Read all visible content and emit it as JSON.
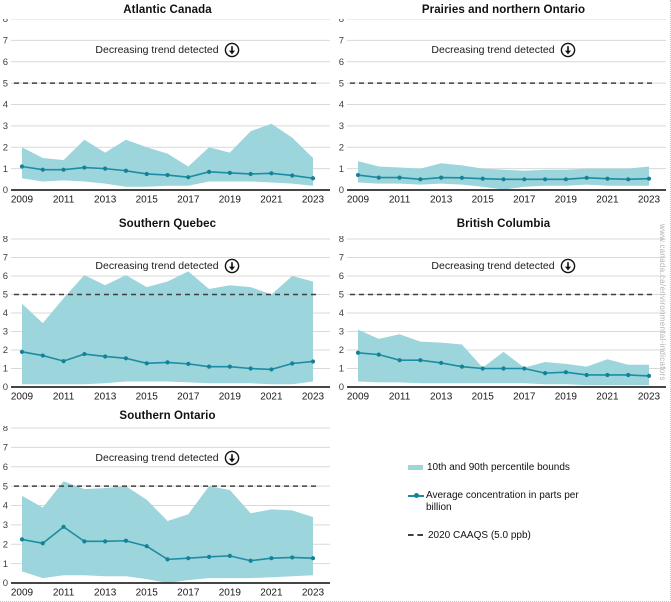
{
  "watermark": "www.canada.ca/environmental-indicators",
  "annotation": {
    "text": "Decreasing trend detected",
    "arrow_glyph": "down-arrow-in-circle"
  },
  "axis": {
    "ylim": [
      0,
      8
    ],
    "yticks": [
      0,
      1,
      2,
      3,
      4,
      5,
      6,
      7,
      8
    ],
    "xticks": [
      2009,
      2011,
      2013,
      2015,
      2017,
      2019,
      2021,
      2023
    ],
    "grid": true,
    "reference": {
      "label": "2020 CAAQS",
      "value": 5.0
    }
  },
  "colors": {
    "band": "#9CD5DC",
    "line": "#1E8CA1",
    "dot": "#14819A",
    "grid": "#D9D9D9",
    "axis": "#2B2B2B",
    "caaqs": "#3F3F3F"
  },
  "legend": {
    "items": [
      {
        "label": "10th and 90th percentile bounds"
      },
      {
        "label": "Average concentration in parts per billion"
      },
      {
        "label": "2020 CAAQS (5.0 ppb)"
      }
    ]
  },
  "chart_data": [
    {
      "type": "area",
      "title": "Atlantic Canada",
      "annotation": "Decreasing trend detected",
      "x": [
        2009,
        2010,
        2011,
        2012,
        2013,
        2014,
        2015,
        2016,
        2017,
        2018,
        2019,
        2020,
        2021,
        2022,
        2023
      ],
      "series": [
        {
          "name": "90th percentile",
          "values": [
            2.0,
            1.5,
            1.4,
            2.35,
            1.75,
            2.35,
            2.0,
            1.7,
            1.1,
            2.0,
            1.75,
            2.75,
            3.1,
            2.45,
            1.5
          ]
        },
        {
          "name": "Average concentration in parts per billion",
          "values": [
            1.1,
            0.95,
            0.95,
            1.05,
            1.0,
            0.9,
            0.75,
            0.7,
            0.6,
            0.85,
            0.8,
            0.75,
            0.78,
            0.68,
            0.55
          ]
        },
        {
          "name": "10th percentile",
          "values": [
            0.55,
            0.4,
            0.45,
            0.4,
            0.3,
            0.15,
            0.15,
            0.2,
            0.2,
            0.4,
            0.4,
            0.4,
            0.35,
            0.3,
            0.2
          ]
        }
      ]
    },
    {
      "type": "area",
      "title": "Prairies and northern Ontario",
      "annotation": "Decreasing trend detected",
      "x": [
        2009,
        2010,
        2011,
        2012,
        2013,
        2014,
        2015,
        2016,
        2017,
        2018,
        2019,
        2020,
        2021,
        2022,
        2023
      ],
      "series": [
        {
          "name": "90th percentile",
          "values": [
            1.35,
            1.1,
            1.05,
            1.0,
            1.25,
            1.15,
            1.0,
            0.95,
            0.9,
            0.95,
            0.95,
            1.0,
            1.0,
            1.0,
            1.1
          ]
        },
        {
          "name": "Average concentration in parts per billion",
          "values": [
            0.7,
            0.58,
            0.58,
            0.5,
            0.58,
            0.57,
            0.53,
            0.5,
            0.5,
            0.5,
            0.5,
            0.57,
            0.53,
            0.5,
            0.53
          ]
        },
        {
          "name": "10th percentile",
          "values": [
            0.35,
            0.3,
            0.3,
            0.25,
            0.3,
            0.25,
            0.15,
            0.02,
            0.15,
            0.2,
            0.2,
            0.25,
            0.2,
            0.2,
            0.2
          ]
        }
      ]
    },
    {
      "type": "area",
      "title": "Southern Quebec",
      "annotation": "Decreasing trend detected",
      "x": [
        2009,
        2010,
        2011,
        2012,
        2013,
        2014,
        2015,
        2016,
        2017,
        2018,
        2019,
        2020,
        2021,
        2022,
        2023
      ],
      "series": [
        {
          "name": "90th percentile",
          "values": [
            4.5,
            3.45,
            4.8,
            6.05,
            5.5,
            6.05,
            5.4,
            5.7,
            6.25,
            5.3,
            5.5,
            5.4,
            5.0,
            6.0,
            5.7
          ]
        },
        {
          "name": "Average concentration in parts per billion",
          "values": [
            1.9,
            1.7,
            1.4,
            1.78,
            1.65,
            1.55,
            1.28,
            1.33,
            1.25,
            1.1,
            1.1,
            1.0,
            0.95,
            1.27,
            1.38
          ]
        },
        {
          "name": "10th percentile",
          "values": [
            0.15,
            0.15,
            0.15,
            0.15,
            0.2,
            0.3,
            0.3,
            0.3,
            0.25,
            0.2,
            0.2,
            0.2,
            0.15,
            0.15,
            0.3
          ]
        }
      ]
    },
    {
      "type": "area",
      "title": "British Columbia",
      "annotation": "Decreasing trend detected",
      "x": [
        2009,
        2010,
        2011,
        2012,
        2013,
        2014,
        2015,
        2016,
        2017,
        2018,
        2019,
        2020,
        2021,
        2022,
        2023
      ],
      "series": [
        {
          "name": "90th percentile",
          "values": [
            3.1,
            2.6,
            2.85,
            2.45,
            2.4,
            2.3,
            1.05,
            1.9,
            1.05,
            1.35,
            1.25,
            1.1,
            1.5,
            1.2,
            1.2
          ]
        },
        {
          "name": "Average concentration in parts per billion",
          "values": [
            1.85,
            1.75,
            1.45,
            1.45,
            1.3,
            1.1,
            1.0,
            1.0,
            1.0,
            0.75,
            0.8,
            0.65,
            0.65,
            0.65,
            0.6
          ]
        },
        {
          "name": "10th percentile",
          "values": [
            0.3,
            0.25,
            0.25,
            0.2,
            0.2,
            0.2,
            0.2,
            0.2,
            0.2,
            0.15,
            0.15,
            0.1,
            0.1,
            0.1,
            0.1
          ]
        }
      ]
    },
    {
      "type": "area",
      "title": "Southern Ontario",
      "annotation": "Decreasing trend detected",
      "x": [
        2009,
        2010,
        2011,
        2012,
        2013,
        2014,
        2015,
        2016,
        2017,
        2018,
        2019,
        2020,
        2021,
        2022,
        2023
      ],
      "series": [
        {
          "name": "90th percentile",
          "values": [
            4.5,
            3.9,
            5.25,
            4.85,
            4.9,
            5.0,
            4.3,
            3.2,
            3.55,
            5.0,
            4.8,
            3.6,
            3.8,
            3.75,
            3.4
          ]
        },
        {
          "name": "Average concentration in parts per billion",
          "values": [
            2.25,
            2.05,
            2.9,
            2.15,
            2.15,
            2.18,
            1.9,
            1.22,
            1.28,
            1.35,
            1.4,
            1.15,
            1.28,
            1.32,
            1.28
          ]
        },
        {
          "name": "10th percentile",
          "values": [
            0.6,
            0.25,
            0.4,
            0.4,
            0.35,
            0.35,
            0.2,
            0.0,
            0.15,
            0.25,
            0.25,
            0.25,
            0.3,
            0.35,
            0.4
          ]
        }
      ]
    }
  ]
}
